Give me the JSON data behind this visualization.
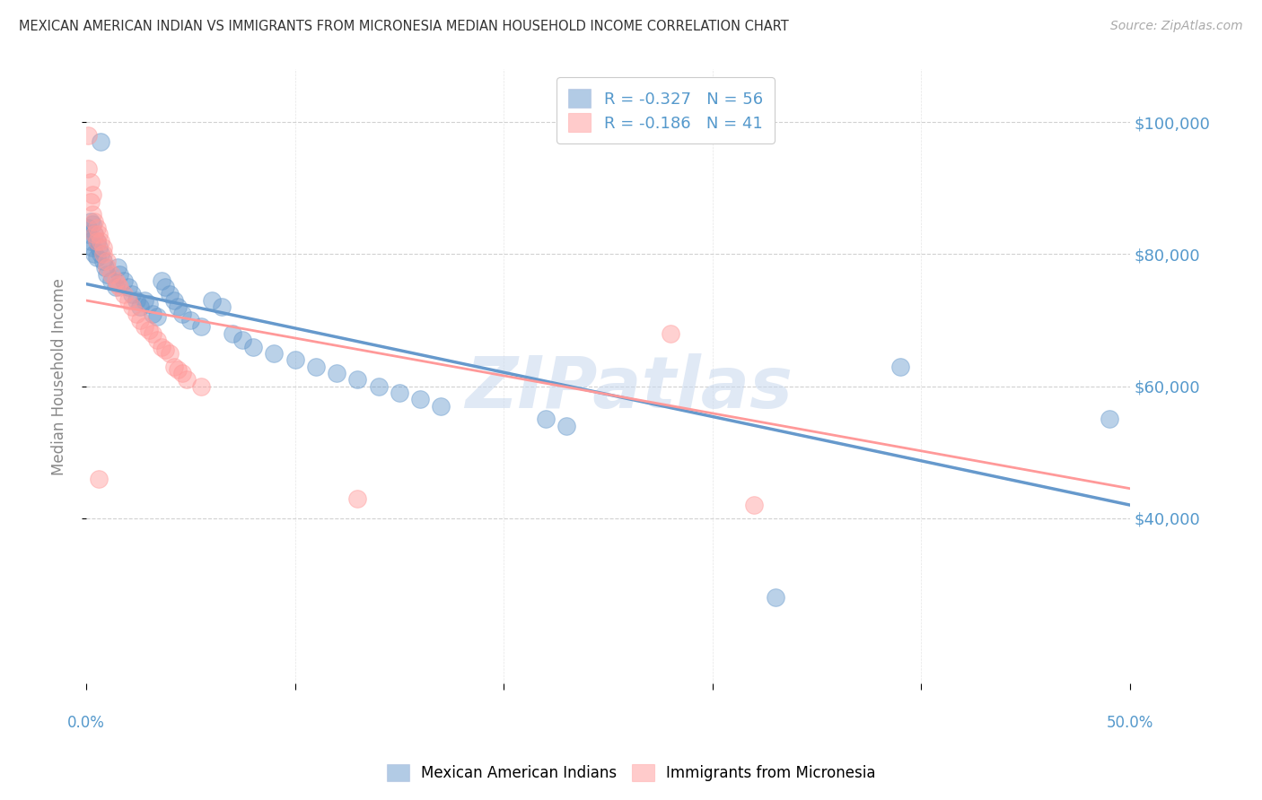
{
  "title": "MEXICAN AMERICAN INDIAN VS IMMIGRANTS FROM MICRONESIA MEDIAN HOUSEHOLD INCOME CORRELATION CHART",
  "source": "Source: ZipAtlas.com",
  "ylabel": "Median Household Income",
  "yticks": [
    40000,
    60000,
    80000,
    100000
  ],
  "ytick_labels": [
    "$40,000",
    "$60,000",
    "$80,000",
    "$100,000"
  ],
  "xlim": [
    0.0,
    0.5
  ],
  "ylim": [
    15000,
    108000
  ],
  "legend1_label": "R = -0.327   N = 56",
  "legend2_label": "R = -0.186   N = 41",
  "blue_color": "#6699CC",
  "pink_color": "#FF9999",
  "series1_name": "Mexican American Indians",
  "series2_name": "Immigrants from Micronesia",
  "watermark": "ZIPatlas",
  "title_color": "#333333",
  "axis_label_color": "#5599CC",
  "blue_scatter": [
    [
      0.001,
      84000
    ],
    [
      0.001,
      83000
    ],
    [
      0.002,
      85000
    ],
    [
      0.002,
      82000
    ],
    [
      0.003,
      84500
    ],
    [
      0.003,
      81000
    ],
    [
      0.004,
      83000
    ],
    [
      0.004,
      80000
    ],
    [
      0.005,
      82000
    ],
    [
      0.005,
      79500
    ],
    [
      0.006,
      81000
    ],
    [
      0.007,
      80000
    ],
    [
      0.008,
      79000
    ],
    [
      0.009,
      78000
    ],
    [
      0.01,
      77000
    ],
    [
      0.012,
      76000
    ],
    [
      0.014,
      75000
    ],
    [
      0.015,
      78000
    ],
    [
      0.016,
      77000
    ],
    [
      0.018,
      76000
    ],
    [
      0.02,
      75000
    ],
    [
      0.022,
      74000
    ],
    [
      0.024,
      73000
    ],
    [
      0.026,
      72000
    ],
    [
      0.028,
      73000
    ],
    [
      0.03,
      72500
    ],
    [
      0.032,
      71000
    ],
    [
      0.034,
      70500
    ],
    [
      0.036,
      76000
    ],
    [
      0.038,
      75000
    ],
    [
      0.04,
      74000
    ],
    [
      0.042,
      73000
    ],
    [
      0.044,
      72000
    ],
    [
      0.046,
      71000
    ],
    [
      0.05,
      70000
    ],
    [
      0.055,
      69000
    ],
    [
      0.06,
      73000
    ],
    [
      0.065,
      72000
    ],
    [
      0.07,
      68000
    ],
    [
      0.075,
      67000
    ],
    [
      0.08,
      66000
    ],
    [
      0.09,
      65000
    ],
    [
      0.1,
      64000
    ],
    [
      0.11,
      63000
    ],
    [
      0.12,
      62000
    ],
    [
      0.13,
      61000
    ],
    [
      0.14,
      60000
    ],
    [
      0.15,
      59000
    ],
    [
      0.16,
      58000
    ],
    [
      0.17,
      57000
    ],
    [
      0.22,
      55000
    ],
    [
      0.23,
      54000
    ],
    [
      0.39,
      63000
    ],
    [
      0.49,
      55000
    ],
    [
      0.007,
      97000
    ],
    [
      0.33,
      28000
    ]
  ],
  "pink_scatter": [
    [
      0.001,
      98000
    ],
    [
      0.001,
      93000
    ],
    [
      0.002,
      91000
    ],
    [
      0.002,
      88000
    ],
    [
      0.003,
      89000
    ],
    [
      0.003,
      86000
    ],
    [
      0.004,
      85000
    ],
    [
      0.004,
      83000
    ],
    [
      0.005,
      84000
    ],
    [
      0.005,
      82000
    ],
    [
      0.006,
      83000
    ],
    [
      0.007,
      82000
    ],
    [
      0.008,
      81000
    ],
    [
      0.008,
      80000
    ],
    [
      0.01,
      79000
    ],
    [
      0.01,
      78000
    ],
    [
      0.012,
      77000
    ],
    [
      0.014,
      76000
    ],
    [
      0.015,
      75500
    ],
    [
      0.016,
      75000
    ],
    [
      0.018,
      74000
    ],
    [
      0.02,
      73000
    ],
    [
      0.022,
      72000
    ],
    [
      0.024,
      71000
    ],
    [
      0.026,
      70000
    ],
    [
      0.028,
      69000
    ],
    [
      0.03,
      68500
    ],
    [
      0.032,
      68000
    ],
    [
      0.034,
      67000
    ],
    [
      0.036,
      66000
    ],
    [
      0.038,
      65500
    ],
    [
      0.04,
      65000
    ],
    [
      0.042,
      63000
    ],
    [
      0.044,
      62500
    ],
    [
      0.046,
      62000
    ],
    [
      0.048,
      61000
    ],
    [
      0.055,
      60000
    ],
    [
      0.28,
      68000
    ],
    [
      0.006,
      46000
    ],
    [
      0.13,
      43000
    ],
    [
      0.32,
      42000
    ]
  ],
  "blue_line_x": [
    0.0,
    0.5
  ],
  "blue_line_y": [
    75500,
    42000
  ],
  "pink_line_x": [
    0.0,
    0.5
  ],
  "pink_line_y": [
    73000,
    44500
  ]
}
